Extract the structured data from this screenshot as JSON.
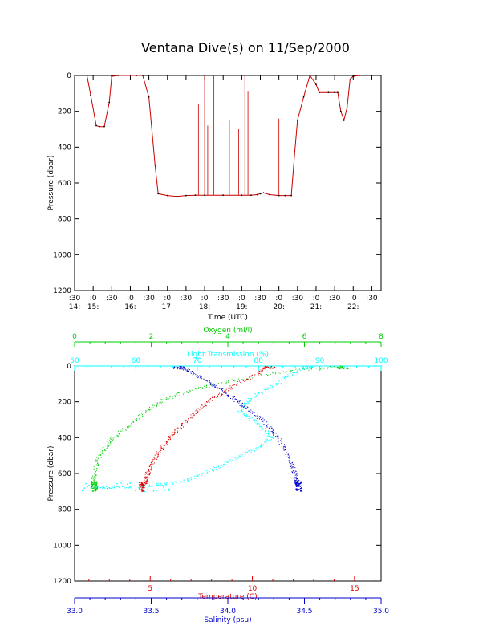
{
  "title": "Ventana Dive(s) on 11/Sep/2000",
  "colors": {
    "axis": "#000000",
    "pressure_trace": "#cc0000",
    "depth_dots": "#000000",
    "oxygen": "#00cc00",
    "light_transmission": "#00ffff",
    "temperature": "#dd0000",
    "salinity": "#0000cc"
  },
  "chart_data": [
    {
      "type": "line",
      "title": "Ventana Dive(s) on 11/Sep/2000",
      "xlabel": "Time (UTC)",
      "ylabel": "Pressure (dbar)",
      "y_reversed": true,
      "ylim": [
        1200,
        0
      ],
      "xlim": [
        "14:30",
        "22:45"
      ],
      "x_ticks": [
        {
          "t": "14:30",
          "label": ":30",
          "hour": "14:"
        },
        {
          "t": "15:00",
          "label": ":0",
          "hour": "15:"
        },
        {
          "t": "15:30",
          "label": ":30",
          "hour": ""
        },
        {
          "t": "16:00",
          "label": ":0",
          "hour": "16:"
        },
        {
          "t": "16:30",
          "label": ":30",
          "hour": ""
        },
        {
          "t": "17:00",
          "label": ":0",
          "hour": "17:"
        },
        {
          "t": "17:30",
          "label": ":30",
          "hour": ""
        },
        {
          "t": "18:00",
          "label": ":0",
          "hour": "18:"
        },
        {
          "t": "18:30",
          "label": ":30",
          "hour": ""
        },
        {
          "t": "19:00",
          "label": ":0",
          "hour": "19:"
        },
        {
          "t": "19:30",
          "label": ":30",
          "hour": ""
        },
        {
          "t": "20:00",
          "label": ":0",
          "hour": "20:"
        },
        {
          "t": "20:30",
          "label": ":30",
          "hour": ""
        },
        {
          "t": "21:00",
          "label": ":0",
          "hour": "21:"
        },
        {
          "t": "21:30",
          "label": ":30",
          "hour": ""
        },
        {
          "t": "22:00",
          "label": ":0",
          "hour": "22:"
        },
        {
          "t": "22:30",
          "label": ":30",
          "hour": ""
        }
      ],
      "y_ticks": [
        0,
        200,
        400,
        600,
        800,
        1000,
        1200
      ],
      "series": [
        {
          "x": [
            "14:50",
            "14:56",
            "15:05",
            "15:10",
            "15:18",
            "15:26",
            "15:30",
            "15:40",
            "16:10",
            "16:20",
            "16:30",
            "16:40",
            "16:45",
            "17:00",
            "17:15",
            "17:30",
            "17:45",
            "18:00",
            "18:30",
            "19:00",
            "19:15",
            "19:25",
            "19:30",
            "19:35",
            "19:45",
            "20:00",
            "20:10",
            "20:20",
            "20:25",
            "20:30",
            "20:40",
            "20:50",
            "21:00",
            "21:05",
            "21:20",
            "21:30",
            "21:35",
            "21:40",
            "21:45",
            "21:50",
            "21:55",
            "22:00",
            "22:10"
          ],
          "y": [
            0,
            110,
            280,
            285,
            285,
            150,
            5,
            0,
            0,
            0,
            120,
            500,
            660,
            670,
            675,
            670,
            668,
            668,
            668,
            668,
            668,
            665,
            660,
            655,
            665,
            670,
            670,
            670,
            450,
            250,
            120,
            0,
            50,
            95,
            95,
            95,
            95,
            200,
            250,
            180,
            20,
            5,
            0
          ]
        }
      ],
      "spikes": [
        {
          "x": "17:50",
          "y_top": 160
        },
        {
          "x": "18:00",
          "y_top": 0
        },
        {
          "x": "18:05",
          "y_top": 280
        },
        {
          "x": "18:15",
          "y_top": 0
        },
        {
          "x": "18:40",
          "y_top": 250
        },
        {
          "x": "18:55",
          "y_top": 300
        },
        {
          "x": "19:05",
          "y_top": 0
        },
        {
          "x": "19:10",
          "y_top": 90
        },
        {
          "x": "20:00",
          "y_top": 240
        }
      ]
    },
    {
      "type": "scatter",
      "ylabel": "Pressure (dbar)",
      "y_reversed": true,
      "ylim": [
        1200,
        0
      ],
      "y_ticks": [
        0,
        200,
        400,
        600,
        800,
        1000,
        1200
      ],
      "axes": {
        "oxygen": {
          "label": "Oxygen (ml/l)",
          "lim": [
            0,
            8
          ],
          "ticks": [
            0,
            2,
            4,
            6,
            8
          ]
        },
        "light_transmission": {
          "label": "Light Transmission (%)",
          "lim": [
            50,
            100
          ],
          "ticks": [
            50,
            60,
            70,
            80,
            90,
            100
          ]
        },
        "temperature": {
          "label": "Temperature (C)",
          "lim": [
            1.3,
            16.3
          ],
          "ticks": [
            5,
            10,
            15
          ]
        },
        "salinity": {
          "label": "Salinity (psu)",
          "lim": [
            33.0,
            35.0
          ],
          "ticks": [
            "33.0",
            "33.5",
            "34.0",
            "34.5",
            "35.0"
          ]
        }
      },
      "series": [
        {
          "name": "Oxygen (ml/l)",
          "axis": "oxygen",
          "points": [
            [
              7.0,
              0
            ],
            [
              5.8,
              20
            ],
            [
              4.9,
              50
            ],
            [
              3.6,
              100
            ],
            [
              2.8,
              150
            ],
            [
              2.2,
              200
            ],
            [
              1.8,
              260
            ],
            [
              1.4,
              330
            ],
            [
              1.0,
              400
            ],
            [
              0.8,
              450
            ],
            [
              0.6,
              520
            ],
            [
              0.5,
              600
            ],
            [
              0.5,
              650
            ],
            [
              0.5,
              670
            ]
          ]
        },
        {
          "name": "Light Transmission (%)",
          "axis": "light_transmission",
          "points": [
            [
              88,
              0
            ],
            [
              85,
              50
            ],
            [
              83,
              100
            ],
            [
              80,
              150
            ],
            [
              78,
              200
            ],
            [
              77,
              250
            ],
            [
              79,
              300
            ],
            [
              81,
              350
            ],
            [
              82,
              400
            ],
            [
              80,
              450
            ],
            [
              77,
              500
            ],
            [
              74,
              550
            ],
            [
              71,
              600
            ],
            [
              68,
              640
            ],
            [
              64,
              660
            ],
            [
              60,
              670
            ],
            [
              56,
              675
            ],
            [
              53,
              672
            ]
          ]
        },
        {
          "name": "Temperature (C)",
          "axis": "temperature",
          "points": [
            [
              10.8,
              0
            ],
            [
              10.2,
              40
            ],
            [
              9.2,
              100
            ],
            [
              8.5,
              150
            ],
            [
              7.8,
              200
            ],
            [
              7.2,
              260
            ],
            [
              6.6,
              320
            ],
            [
              6.1,
              380
            ],
            [
              5.6,
              450
            ],
            [
              5.2,
              520
            ],
            [
              4.9,
              580
            ],
            [
              4.8,
              620
            ],
            [
              4.7,
              650
            ],
            [
              4.6,
              670
            ]
          ]
        },
        {
          "name": "Salinity (psu)",
          "axis": "salinity",
          "points": [
            [
              33.68,
              0
            ],
            [
              33.75,
              30
            ],
            [
              33.85,
              80
            ],
            [
              33.95,
              130
            ],
            [
              34.05,
              190
            ],
            [
              34.15,
              250
            ],
            [
              34.25,
              320
            ],
            [
              34.33,
              400
            ],
            [
              34.38,
              480
            ],
            [
              34.42,
              560
            ],
            [
              34.44,
              620
            ],
            [
              34.45,
              650
            ],
            [
              34.46,
              670
            ]
          ]
        }
      ]
    }
  ]
}
